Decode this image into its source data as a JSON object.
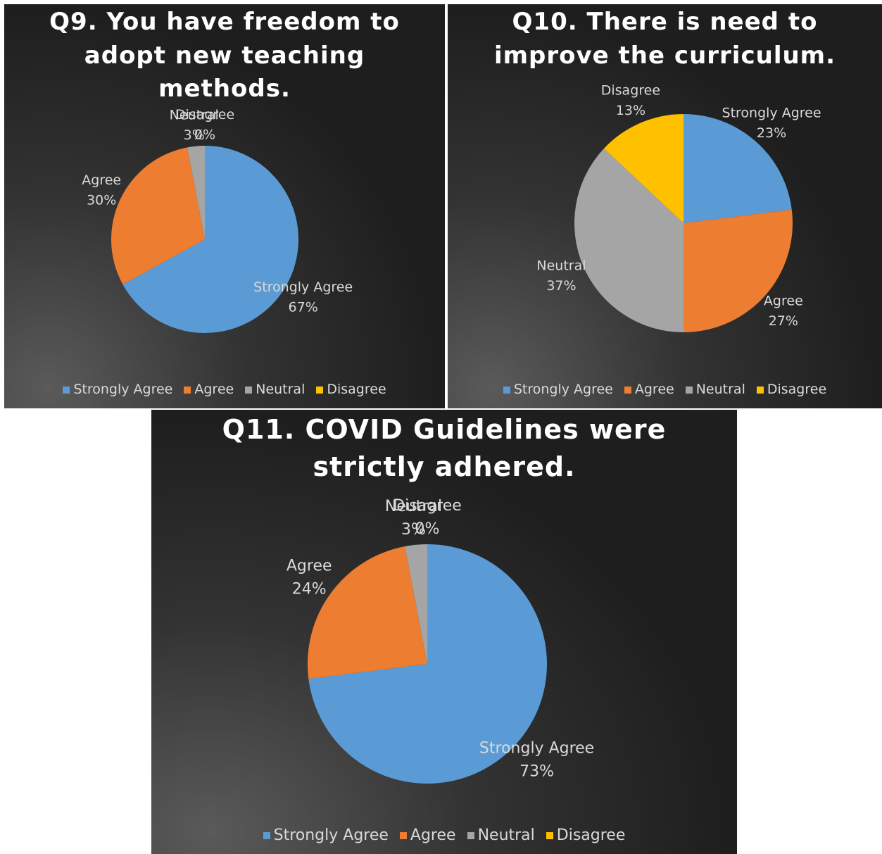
{
  "chart_data": [
    {
      "type": "pie",
      "title": "Q9. You have freedom to adopt new teaching methods.",
      "categories": [
        "Strongly Agree",
        "Agree",
        "Neutral",
        "Disagree"
      ],
      "values": [
        67,
        30,
        3,
        0
      ],
      "value_labels": [
        "67%",
        "30%",
        "3%",
        "0%"
      ],
      "colors": [
        "#5b9bd5",
        "#ed7d31",
        "#a5a5a5",
        "#ffc000"
      ],
      "legend": "bottom"
    },
    {
      "type": "pie",
      "title": "Q10. There is need to improve the curriculum.",
      "categories": [
        "Strongly Agree",
        "Agree",
        "Neutral",
        "Disagree"
      ],
      "values": [
        23,
        27,
        37,
        13
      ],
      "value_labels": [
        "23%",
        "27%",
        "37%",
        "13%"
      ],
      "colors": [
        "#5b9bd5",
        "#ed7d31",
        "#a5a5a5",
        "#ffc000"
      ],
      "legend": "bottom"
    },
    {
      "type": "pie",
      "title": "Q11. COVID Guidelines were strictly adhered.",
      "categories": [
        "Strongly Agree",
        "Agree",
        "Neutral",
        "Disagree"
      ],
      "values": [
        73,
        24,
        3,
        0
      ],
      "value_labels": [
        "73%",
        "24%",
        "3%",
        "0%"
      ],
      "colors": [
        "#5b9bd5",
        "#ed7d31",
        "#a5a5a5",
        "#ffc000"
      ],
      "legend": "bottom"
    }
  ]
}
